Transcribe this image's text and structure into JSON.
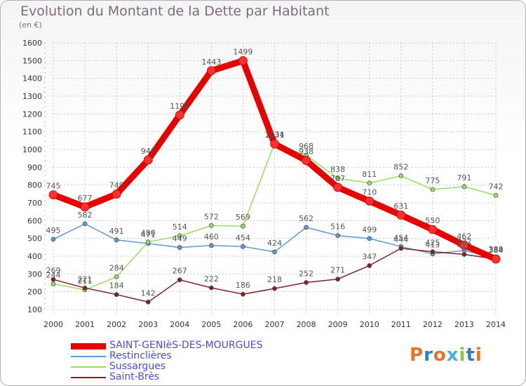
{
  "title": "Evolution du Montant de la Dette par Habitant",
  "subtitle": "(en €)",
  "logo": {
    "text": "Proxiti",
    "colors": [
      "#e8722a",
      "#2a7fd0",
      "#e8722a",
      "#4bb0d8",
      "#8cc63e",
      "#2a7fd0",
      "#e8722a"
    ]
  },
  "chart_data": {
    "type": "line",
    "title": "Evolution du Montant de la Dette par Habitant",
    "subtitle": "(en €)",
    "x": [
      2000,
      2001,
      2002,
      2003,
      2004,
      2005,
      2006,
      2007,
      2008,
      2009,
      2010,
      2011,
      2012,
      2013,
      2014
    ],
    "ylim": [
      100,
      1600
    ],
    "yticks": [
      100,
      200,
      300,
      400,
      500,
      600,
      700,
      800,
      900,
      1000,
      1100,
      1200,
      1300,
      1400,
      1500,
      1600
    ],
    "grid": true,
    "legend_position": "bottom-left",
    "series": [
      {
        "name": "SAINT-GENIèS-DES-MOURGUES",
        "color": "#e60000",
        "values": [
          745,
          677,
          749,
          941,
          1194,
          1443,
          1499,
          1031,
          938,
          787,
          710,
          631,
          550,
          462,
          384
        ]
      },
      {
        "name": "Restinclières",
        "color": "#5b9bd5",
        "values": [
          495,
          582,
          491,
          471,
          449,
          460,
          454,
          424,
          562,
          516,
          499,
          454,
          413,
          432,
          389
        ]
      },
      {
        "name": "Sussargues",
        "color": "#99dd66",
        "values": [
          244,
          211,
          284,
          480,
          514,
          572,
          569,
          1034,
          968,
          838,
          811,
          852,
          775,
          791,
          742
        ]
      },
      {
        "name": "Saint-Brès",
        "color": "#802020",
        "values": [
          269,
          221,
          184,
          142,
          267,
          222,
          186,
          218,
          252,
          271,
          347,
          444,
          425,
          410,
          384
        ]
      }
    ],
    "value_labels": [
      [
        "745",
        "677",
        "749",
        "941",
        "1194",
        "1443",
        "1499",
        "1031",
        "938",
        "787",
        "710",
        "631",
        "550",
        "462",
        "384"
      ],
      [
        "495",
        "582",
        "491",
        "471",
        "449",
        "460",
        "454",
        "424",
        "562",
        "516",
        "499",
        "454",
        "413",
        "432",
        "389"
      ],
      [
        "244",
        "211",
        "284",
        "480",
        "514",
        "572",
        "569",
        "1034",
        "968",
        "838",
        "811",
        "852",
        "775",
        "791",
        "742"
      ],
      [
        "269",
        "221",
        "184",
        "142",
        "267",
        "222",
        "186",
        "218",
        "252",
        "271",
        "347",
        "444",
        "425",
        "410",
        "384"
      ]
    ]
  }
}
